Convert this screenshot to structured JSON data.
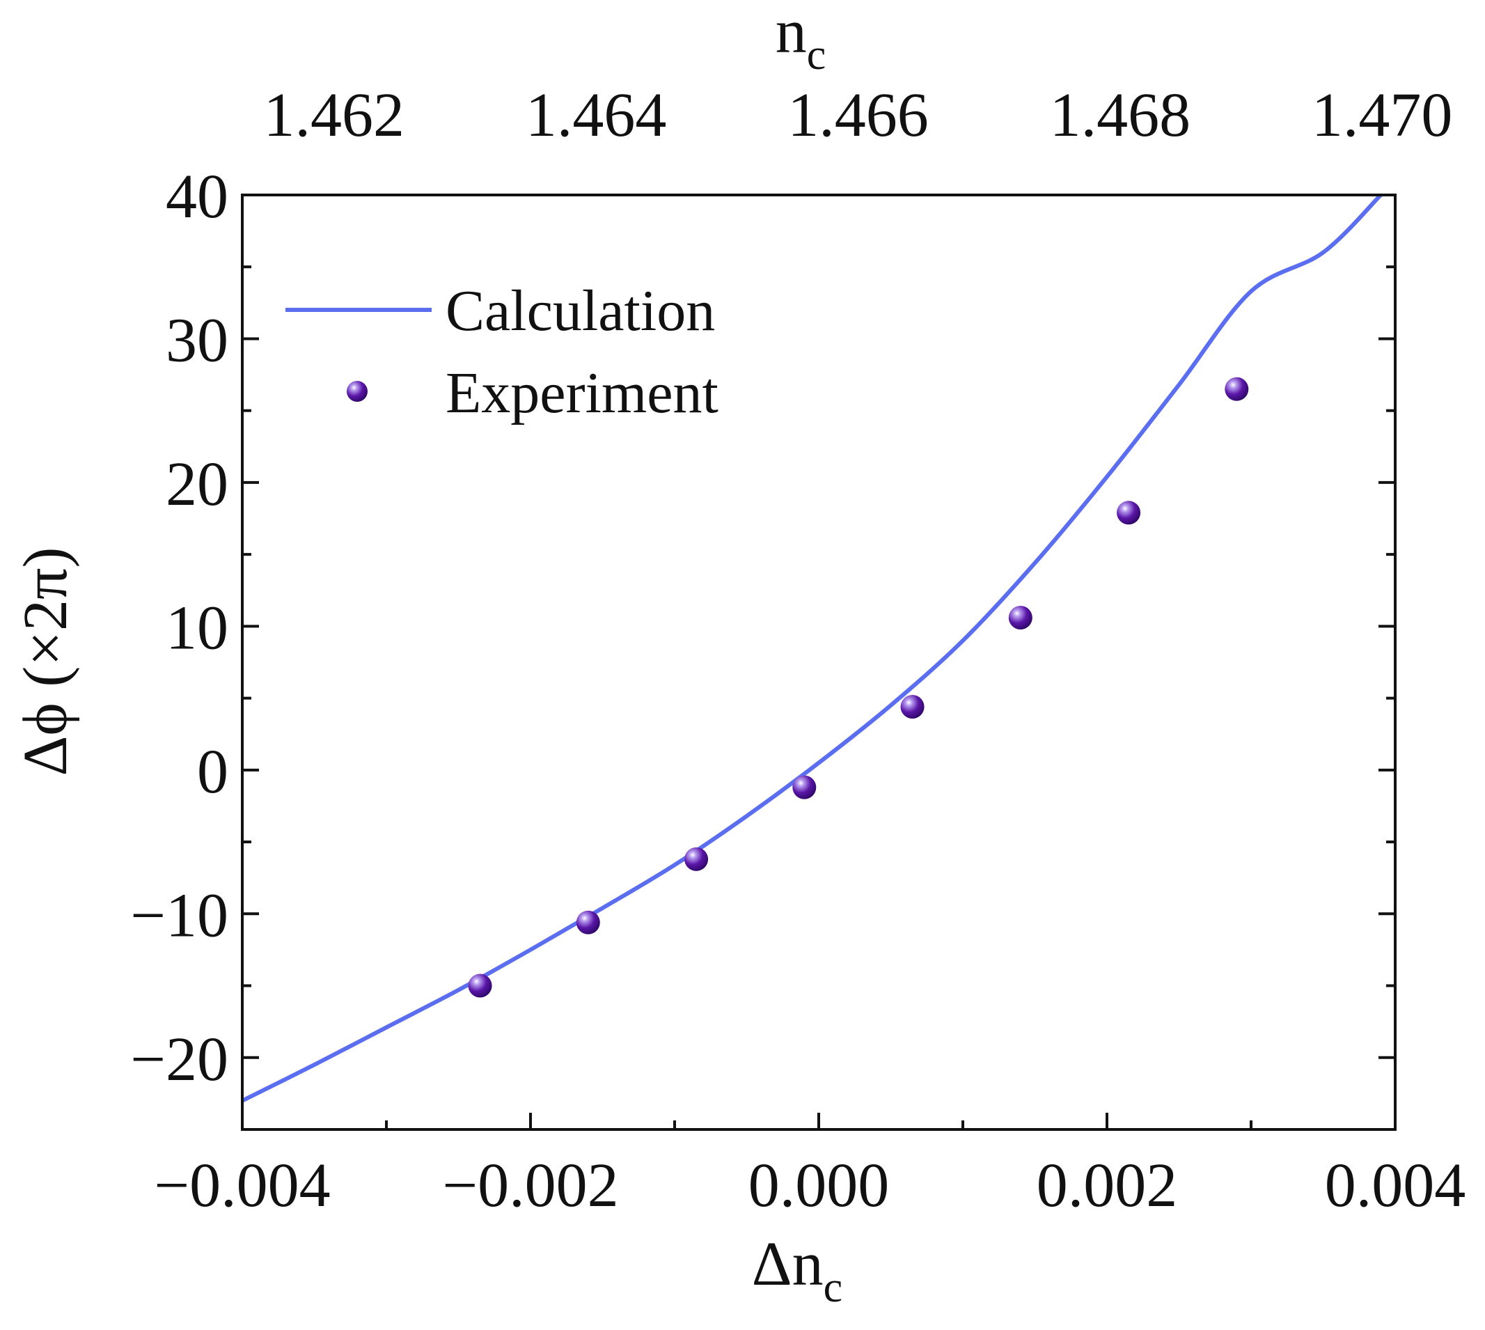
{
  "chart_data": {
    "type": "line",
    "title": "",
    "xlabel": "Δn",
    "xlabel_sub": "c",
    "ylabel": "Δϕ (×2π)",
    "top_xlabel": "n",
    "top_xlabel_sub": "c",
    "xlim": [
      -0.004,
      0.004
    ],
    "ylim": [
      -25,
      40
    ],
    "top_xlim": [
      1.4613,
      1.4701
    ],
    "x_ticks": [
      {
        "value": -0.004,
        "label": "−0.004"
      },
      {
        "value": -0.002,
        "label": "−0.002"
      },
      {
        "value": 0.0,
        "label": "0.000"
      },
      {
        "value": 0.002,
        "label": "0.002"
      },
      {
        "value": 0.004,
        "label": "0.004"
      }
    ],
    "x_minor_ticks": [
      -0.003,
      -0.001,
      0.001,
      0.003
    ],
    "top_x_ticks": [
      {
        "value": 1.462,
        "label": "1.462"
      },
      {
        "value": 1.464,
        "label": "1.464"
      },
      {
        "value": 1.466,
        "label": "1.466"
      },
      {
        "value": 1.468,
        "label": "1.468"
      },
      {
        "value": 1.47,
        "label": "1.470"
      }
    ],
    "y_ticks": [
      {
        "value": -20,
        "label": "−20"
      },
      {
        "value": -10,
        "label": "−10"
      },
      {
        "value": 0,
        "label": "0"
      },
      {
        "value": 10,
        "label": "10"
      },
      {
        "value": 20,
        "label": "20"
      },
      {
        "value": 30,
        "label": "30"
      },
      {
        "value": 40,
        "label": "40"
      }
    ],
    "y_minor_ticks": [
      -15,
      -5,
      5,
      15,
      25,
      35
    ],
    "legend_position": "top-left",
    "series": [
      {
        "name": "Calculation",
        "kind": "line",
        "color": "#5b6ef0",
        "x": [
          -0.004,
          -0.0035,
          -0.003,
          -0.0025,
          -0.002,
          -0.0015,
          -0.001,
          -0.0005,
          0.0,
          0.0005,
          0.001,
          0.0015,
          0.002,
          0.0025,
          0.003,
          0.0035,
          0.0039
        ],
        "y": [
          -23,
          -20.5,
          -17.9,
          -15.3,
          -12.5,
          -9.6,
          -6.6,
          -3.2,
          0.5,
          4.5,
          9.0,
          14.4,
          20.4,
          26.8,
          33.3,
          36.0,
          40.0
        ]
      },
      {
        "name": "Experiment",
        "kind": "scatter",
        "color": "#4b0f96",
        "x": [
          -0.00235,
          -0.0016,
          -0.00085,
          -0.0001,
          0.00065,
          0.0014,
          0.00215,
          0.0029
        ],
        "y": [
          -15,
          -10.6,
          -6.2,
          -1.2,
          4.4,
          10.6,
          17.9,
          26.5
        ]
      }
    ]
  }
}
